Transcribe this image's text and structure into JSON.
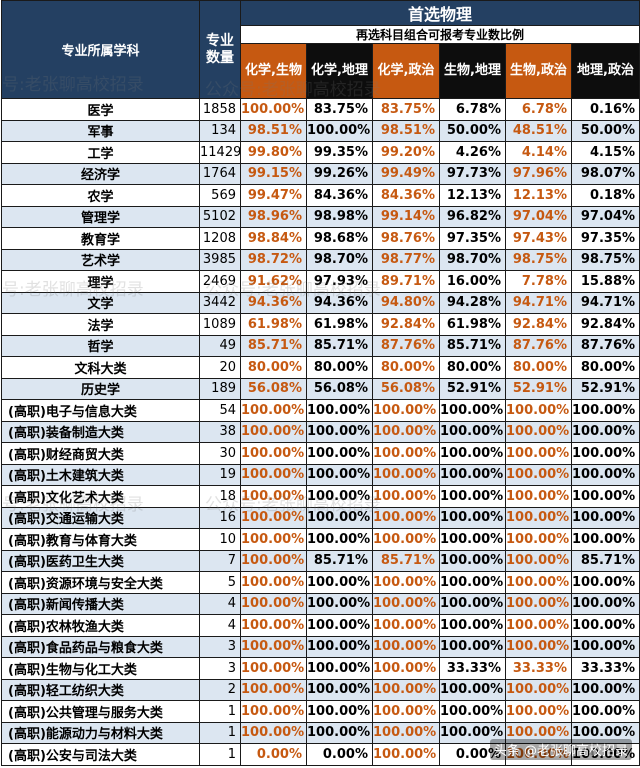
{
  "header": {
    "subject_label": "专业所属学科",
    "count_label": "专业数量",
    "title": "首选物理",
    "subtitle": "再选科目组合可报考专业数比例",
    "columns": [
      {
        "label": "化学,生物",
        "color": "#c65911"
      },
      {
        "label": "化学,地理",
        "color": "#0d0d0d"
      },
      {
        "label": "化学,政治",
        "color": "#c65911"
      },
      {
        "label": "生物,地理",
        "color": "#0d0d0d"
      },
      {
        "label": "生物,政治",
        "color": "#c65911"
      },
      {
        "label": "地理,政治",
        "color": "#0d0d0d"
      }
    ]
  },
  "rows": [
    {
      "name": "医学",
      "count": "1858",
      "v": [
        "100.00%",
        "83.75%",
        "83.75%",
        "6.78%",
        "6.78%",
        "0.16%"
      ]
    },
    {
      "name": "军事",
      "count": "134",
      "v": [
        "98.51%",
        "100.00%",
        "98.51%",
        "50.00%",
        "48.51%",
        "50.00%"
      ]
    },
    {
      "name": "工学",
      "count": "11429",
      "v": [
        "99.80%",
        "99.35%",
        "99.20%",
        "4.26%",
        "4.14%",
        "4.15%"
      ]
    },
    {
      "name": "经济学",
      "count": "1764",
      "v": [
        "99.15%",
        "99.26%",
        "99.49%",
        "97.73%",
        "97.96%",
        "98.07%"
      ]
    },
    {
      "name": "农学",
      "count": "569",
      "v": [
        "99.47%",
        "84.36%",
        "84.36%",
        "12.13%",
        "12.13%",
        "0.18%"
      ]
    },
    {
      "name": "管理学",
      "count": "5102",
      "v": [
        "98.96%",
        "98.98%",
        "99.14%",
        "96.82%",
        "97.04%",
        "97.04%"
      ]
    },
    {
      "name": "教育学",
      "count": "1208",
      "v": [
        "98.84%",
        "98.68%",
        "98.76%",
        "97.35%",
        "97.43%",
        "97.35%"
      ]
    },
    {
      "name": "艺术学",
      "count": "3985",
      "v": [
        "98.72%",
        "98.70%",
        "98.77%",
        "98.70%",
        "98.75%",
        "98.75%"
      ]
    },
    {
      "name": "理学",
      "count": "2469",
      "v": [
        "91.62%",
        "97.93%",
        "89.71%",
        "16.00%",
        "7.78%",
        "15.88%"
      ]
    },
    {
      "name": "文学",
      "count": "3442",
      "v": [
        "94.36%",
        "94.36%",
        "94.80%",
        "94.28%",
        "94.71%",
        "94.71%"
      ]
    },
    {
      "name": "法学",
      "count": "1089",
      "v": [
        "61.98%",
        "61.98%",
        "92.84%",
        "61.98%",
        "92.84%",
        "92.84%"
      ]
    },
    {
      "name": "哲学",
      "count": "49",
      "v": [
        "85.71%",
        "85.71%",
        "87.76%",
        "85.71%",
        "87.76%",
        "87.76%"
      ]
    },
    {
      "name": "文科大类",
      "count": "20",
      "v": [
        "80.00%",
        "80.00%",
        "80.00%",
        "80.00%",
        "80.00%",
        "80.00%"
      ]
    },
    {
      "name": "历史学",
      "count": "189",
      "v": [
        "56.08%",
        "56.08%",
        "56.08%",
        "52.91%",
        "52.91%",
        "52.91%"
      ]
    },
    {
      "name": "(高职)电子与信息大类",
      "count": "54",
      "v": [
        "100.00%",
        "100.00%",
        "100.00%",
        "100.00%",
        "100.00%",
        "100.00%"
      ]
    },
    {
      "name": "(高职)装备制造大类",
      "count": "38",
      "v": [
        "100.00%",
        "100.00%",
        "100.00%",
        "100.00%",
        "100.00%",
        "100.00%"
      ]
    },
    {
      "name": "(高职)财经商贸大类",
      "count": "30",
      "v": [
        "100.00%",
        "100.00%",
        "100.00%",
        "100.00%",
        "100.00%",
        "100.00%"
      ]
    },
    {
      "name": "(高职)土木建筑大类",
      "count": "19",
      "v": [
        "100.00%",
        "100.00%",
        "100.00%",
        "100.00%",
        "100.00%",
        "100.00%"
      ]
    },
    {
      "name": "(高职)文化艺术大类",
      "count": "18",
      "v": [
        "100.00%",
        "100.00%",
        "100.00%",
        "100.00%",
        "100.00%",
        "100.00%"
      ]
    },
    {
      "name": "(高职)交通运输大类",
      "count": "16",
      "v": [
        "100.00%",
        "100.00%",
        "100.00%",
        "100.00%",
        "100.00%",
        "100.00%"
      ]
    },
    {
      "name": "(高职)教育与体育大类",
      "count": "10",
      "v": [
        "100.00%",
        "100.00%",
        "100.00%",
        "100.00%",
        "100.00%",
        "100.00%"
      ]
    },
    {
      "name": "(高职)医药卫生大类",
      "count": "7",
      "v": [
        "100.00%",
        "85.71%",
        "85.71%",
        "100.00%",
        "100.00%",
        "85.71%"
      ]
    },
    {
      "name": "(高职)资源环境与安全大类",
      "count": "5",
      "v": [
        "100.00%",
        "100.00%",
        "100.00%",
        "100.00%",
        "100.00%",
        "100.00%"
      ]
    },
    {
      "name": "(高职)新闻传播大类",
      "count": "4",
      "v": [
        "100.00%",
        "100.00%",
        "100.00%",
        "100.00%",
        "100.00%",
        "100.00%"
      ]
    },
    {
      "name": "(高职)农林牧渔大类",
      "count": "4",
      "v": [
        "100.00%",
        "100.00%",
        "100.00%",
        "100.00%",
        "100.00%",
        "100.00%"
      ]
    },
    {
      "name": "(高职)食品药品与粮食大类",
      "count": "3",
      "v": [
        "100.00%",
        "100.00%",
        "100.00%",
        "100.00%",
        "100.00%",
        "100.00%"
      ]
    },
    {
      "name": "(高职)生物与化工大类",
      "count": "3",
      "v": [
        "100.00%",
        "100.00%",
        "100.00%",
        "33.33%",
        "33.33%",
        "33.33%"
      ]
    },
    {
      "name": "(高职)轻工纺织大类",
      "count": "2",
      "v": [
        "100.00%",
        "100.00%",
        "100.00%",
        "100.00%",
        "100.00%",
        "100.00%"
      ]
    },
    {
      "name": "(高职)公共管理与服务大类",
      "count": "1",
      "v": [
        "100.00%",
        "100.00%",
        "100.00%",
        "100.00%",
        "100.00%",
        "100.00%"
      ]
    },
    {
      "name": "(高职)能源动力与材料大类",
      "count": "1",
      "v": [
        "100.00%",
        "100.00%",
        "100.00%",
        "100.00%",
        "100.00%",
        "100.00%"
      ]
    },
    {
      "name": "(高职)公安与司法大类",
      "count": "1",
      "v": [
        "0.00%",
        "0.00%",
        "100.00%",
        "0.00%",
        "100.00%",
        "100.00%"
      ]
    }
  ],
  "watermarks": [
    "号:老张聊高校招录",
    "公众号:老张聊高校招录",
    "号:老张聊高校招录",
    "公众号:老张聊高校招录",
    "号:老张聊高校招录",
    "公众号:老张聊高校招录"
  ],
  "footer_watermark": "头条 @老张聊高校招录"
}
